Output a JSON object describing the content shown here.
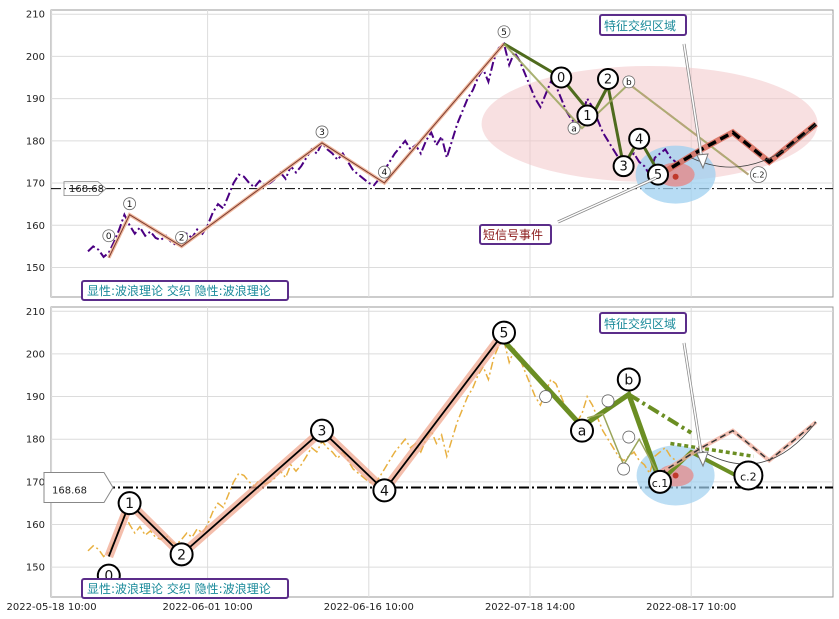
{
  "chart_data": {
    "type": "line",
    "x_ticks": [
      "2022-05-18 10:00",
      "2022-06-01 10:00",
      "2022-06-16 10:00",
      "2022-07-18 14:00",
      "2022-08-17 10:00"
    ],
    "ylim": [
      143,
      211
    ],
    "y_ticks": [
      150,
      160,
      170,
      180,
      190,
      200,
      210
    ],
    "grid": true,
    "reference_line": {
      "value": 168.68,
      "label": "168.68"
    },
    "labels": {
      "legend_box": "显性:波浪理论 交织 隐性:波浪理论",
      "feature_zone": "特征交织区域",
      "short_signal": "短信号事件"
    },
    "colors": {
      "price_top": "#4b0082",
      "price_bottom": "#e8b040",
      "wave_bottom": "#6b8e23",
      "box_border": "#5b2d8a",
      "box_text": "#1a8a9a",
      "signal_text": "#8b1a1a"
    },
    "price_series": [
      [
        0,
        153.8
      ],
      [
        1,
        155
      ],
      [
        2,
        154.2
      ],
      [
        3,
        152.5
      ],
      [
        4,
        153.5
      ],
      [
        5,
        156
      ],
      [
        6,
        159
      ],
      [
        7,
        162.5
      ],
      [
        8,
        160
      ],
      [
        9,
        158
      ],
      [
        10,
        159.5
      ],
      [
        11,
        157.5
      ],
      [
        12,
        158.5
      ],
      [
        13,
        157
      ],
      [
        14,
        156.5
      ],
      [
        15,
        157.5
      ],
      [
        16,
        156
      ],
      [
        17,
        155.3
      ],
      [
        18,
        156.5
      ],
      [
        19,
        158
      ],
      [
        20,
        157
      ],
      [
        21,
        159
      ],
      [
        22,
        158
      ],
      [
        23,
        160
      ],
      [
        24,
        163
      ],
      [
        25,
        165
      ],
      [
        26,
        164
      ],
      [
        27,
        167
      ],
      [
        28,
        170
      ],
      [
        29,
        172
      ],
      [
        30,
        171.5
      ],
      [
        31,
        170
      ],
      [
        32,
        169
      ],
      [
        33,
        170.5
      ],
      [
        34,
        169.5
      ],
      [
        35,
        170
      ],
      [
        36,
        171
      ],
      [
        37,
        172.5
      ],
      [
        38,
        171
      ],
      [
        39,
        174
      ],
      [
        40,
        172.5
      ],
      [
        41,
        174
      ],
      [
        42,
        176
      ],
      [
        43,
        178
      ],
      [
        44,
        177
      ],
      [
        45,
        179.5
      ],
      [
        46,
        178
      ],
      [
        47,
        177
      ],
      [
        48,
        175.5
      ],
      [
        49,
        177
      ],
      [
        50,
        175
      ],
      [
        51,
        173
      ],
      [
        52,
        172
      ],
      [
        53,
        171
      ],
      [
        54,
        170
      ],
      [
        55,
        169.5
      ],
      [
        56,
        171
      ],
      [
        57,
        173
      ],
      [
        58,
        175
      ],
      [
        59,
        177
      ],
      [
        60,
        178.5
      ],
      [
        61,
        180
      ],
      [
        62,
        178
      ],
      [
        63,
        179
      ],
      [
        64,
        177
      ],
      [
        65,
        180
      ],
      [
        66,
        182
      ],
      [
        67,
        179
      ],
      [
        68,
        181
      ],
      [
        69,
        176
      ],
      [
        70,
        180
      ],
      [
        71,
        184
      ],
      [
        72,
        187
      ],
      [
        73,
        190
      ],
      [
        74,
        192
      ],
      [
        75,
        195
      ],
      [
        76,
        197
      ],
      [
        77,
        194
      ],
      [
        78,
        199
      ],
      [
        79,
        202
      ],
      [
        80,
        203
      ],
      [
        81,
        198
      ],
      [
        82,
        201
      ],
      [
        83,
        199
      ],
      [
        84,
        196
      ],
      [
        85,
        193
      ],
      [
        86,
        190
      ],
      [
        87,
        188
      ],
      [
        88,
        191
      ],
      [
        89,
        194
      ],
      [
        90,
        193
      ],
      [
        91,
        190
      ],
      [
        92,
        187
      ],
      [
        93,
        185
      ],
      [
        94,
        184
      ],
      [
        95,
        186
      ],
      [
        96,
        190
      ],
      [
        97,
        188
      ],
      [
        98,
        185
      ],
      [
        99,
        182
      ],
      [
        100,
        180
      ],
      [
        101,
        178
      ],
      [
        102,
        176
      ],
      [
        103,
        175
      ],
      [
        104,
        176
      ],
      [
        105,
        177
      ],
      [
        106,
        175
      ],
      [
        107,
        174
      ],
      [
        108,
        172
      ],
      [
        109,
        176
      ],
      [
        110,
        177
      ],
      [
        111,
        178
      ],
      [
        112,
        176
      ],
      [
        113,
        175
      ]
    ],
    "top_panel": {
      "ylim": [
        143,
        211
      ],
      "waves": [
        {
          "label": "0",
          "x": 4,
          "y": 152.3
        },
        {
          "label": "1",
          "x": 8,
          "y": 162.5
        },
        {
          "label": "2",
          "x": 18,
          "y": 155
        },
        {
          "label": "3",
          "x": 45,
          "y": 179.5
        },
        {
          "label": "4",
          "x": 57,
          "y": 170
        },
        {
          "label": "5",
          "x": 80,
          "y": 203
        },
        {
          "label": "0",
          "x": 91,
          "y": 195
        },
        {
          "label": "1",
          "x": 97,
          "y": 186
        },
        {
          "label": "2",
          "x": 100,
          "y": 193
        },
        {
          "label": "3",
          "x": 103,
          "y": 174
        },
        {
          "label": "4",
          "x": 106,
          "y": 180.5
        },
        {
          "label": "5",
          "x": 110,
          "y": 172
        },
        {
          "label": "a",
          "x": 95,
          "y": 183
        },
        {
          "label": "b",
          "x": 104,
          "y": 193.5
        },
        {
          "label": "c.2",
          "x": 127,
          "y": 172
        }
      ]
    },
    "bottom_panel": {
      "ylim": [
        143,
        211
      ],
      "waves": [
        {
          "label": "0",
          "x": 4,
          "y": 148
        },
        {
          "label": "1",
          "x": 8,
          "y": 165
        },
        {
          "label": "2",
          "x": 18,
          "y": 153
        },
        {
          "label": "3",
          "x": 45,
          "y": 182
        },
        {
          "label": "4",
          "x": 57,
          "y": 168
        },
        {
          "label": "5",
          "x": 80,
          "y": 205
        },
        {
          "label": "a",
          "x": 95,
          "y": 182
        },
        {
          "label": "b",
          "x": 104,
          "y": 194
        },
        {
          "label": "c.1",
          "x": 110,
          "y": 170
        },
        {
          "label": "c.2",
          "x": 127,
          "y": 171.5
        }
      ]
    }
  }
}
